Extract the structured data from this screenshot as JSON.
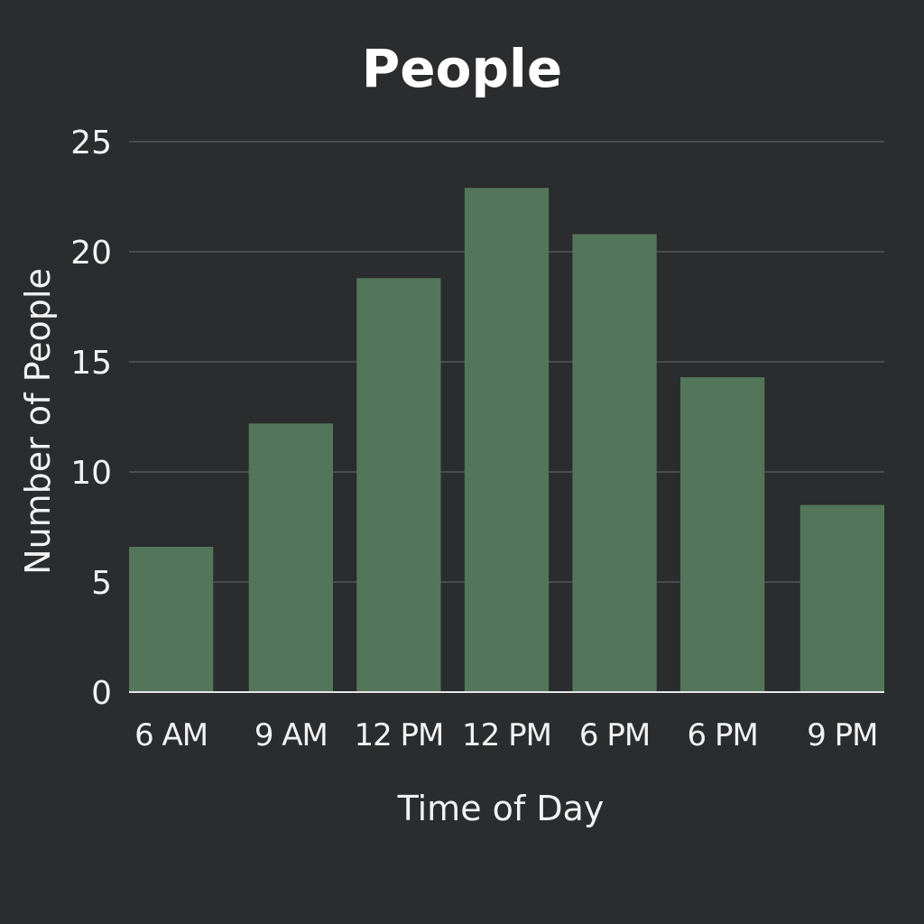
{
  "chart_data": {
    "type": "bar",
    "title": "People",
    "xlabel": "Time of Day",
    "ylabel": "Number of People",
    "categories": [
      "6 AM",
      "9 AM",
      "12 PM",
      "12 PM",
      "6 PM",
      "6 PM",
      "9 PM"
    ],
    "values": [
      6.6,
      12.2,
      18.8,
      22.9,
      20.8,
      14.3,
      8.5
    ],
    "ylim": [
      0,
      25
    ],
    "yticks": [
      "0",
      "5",
      "10",
      "15",
      "20",
      "25"
    ],
    "grid": true,
    "colors": {
      "bar": "#53765a",
      "background": "#2b2c2e"
    }
  }
}
